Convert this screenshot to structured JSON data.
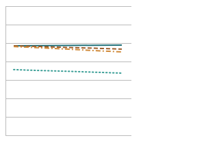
{
  "chart_data": {
    "type": "line",
    "categories": [
      null,
      null,
      null,
      null,
      null
    ],
    "series": [
      {
        "color": "#1f6f78",
        "dash": "solid",
        "values": [
          4.85,
          4.86,
          4.87,
          4.88,
          4.89
        ]
      },
      {
        "color": "#9c5b2a",
        "dash": "dashed",
        "values": [
          4.85,
          4.81,
          4.76,
          4.72,
          4.67
        ]
      },
      {
        "color": "#d08a3a",
        "dash": "dashdot",
        "values": [
          4.81,
          4.74,
          4.67,
          4.59,
          4.52
        ]
      },
      {
        "color": "#3a9e96",
        "dash": "dotted",
        "values": [
          3.56,
          3.51,
          3.47,
          3.42,
          3.37
        ]
      }
    ],
    "ylim": [
      0,
      7
    ],
    "yticks": [
      0,
      1,
      2,
      3,
      4,
      5,
      6,
      7
    ],
    "grid": true
  }
}
